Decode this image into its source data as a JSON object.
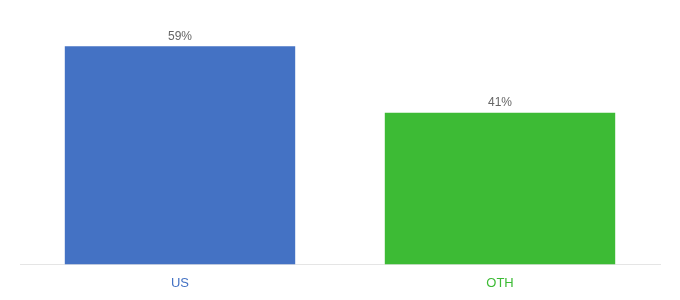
{
  "chart_data": {
    "type": "bar",
    "categories": [
      "US",
      "OTH"
    ],
    "values": [
      59,
      41
    ],
    "value_labels": [
      "59%",
      "41%"
    ],
    "colors": [
      "#4472c4",
      "#3dbb35"
    ],
    "ylim": [
      0,
      65
    ],
    "grid": false,
    "data_labels": true,
    "tick_labels": "x"
  }
}
